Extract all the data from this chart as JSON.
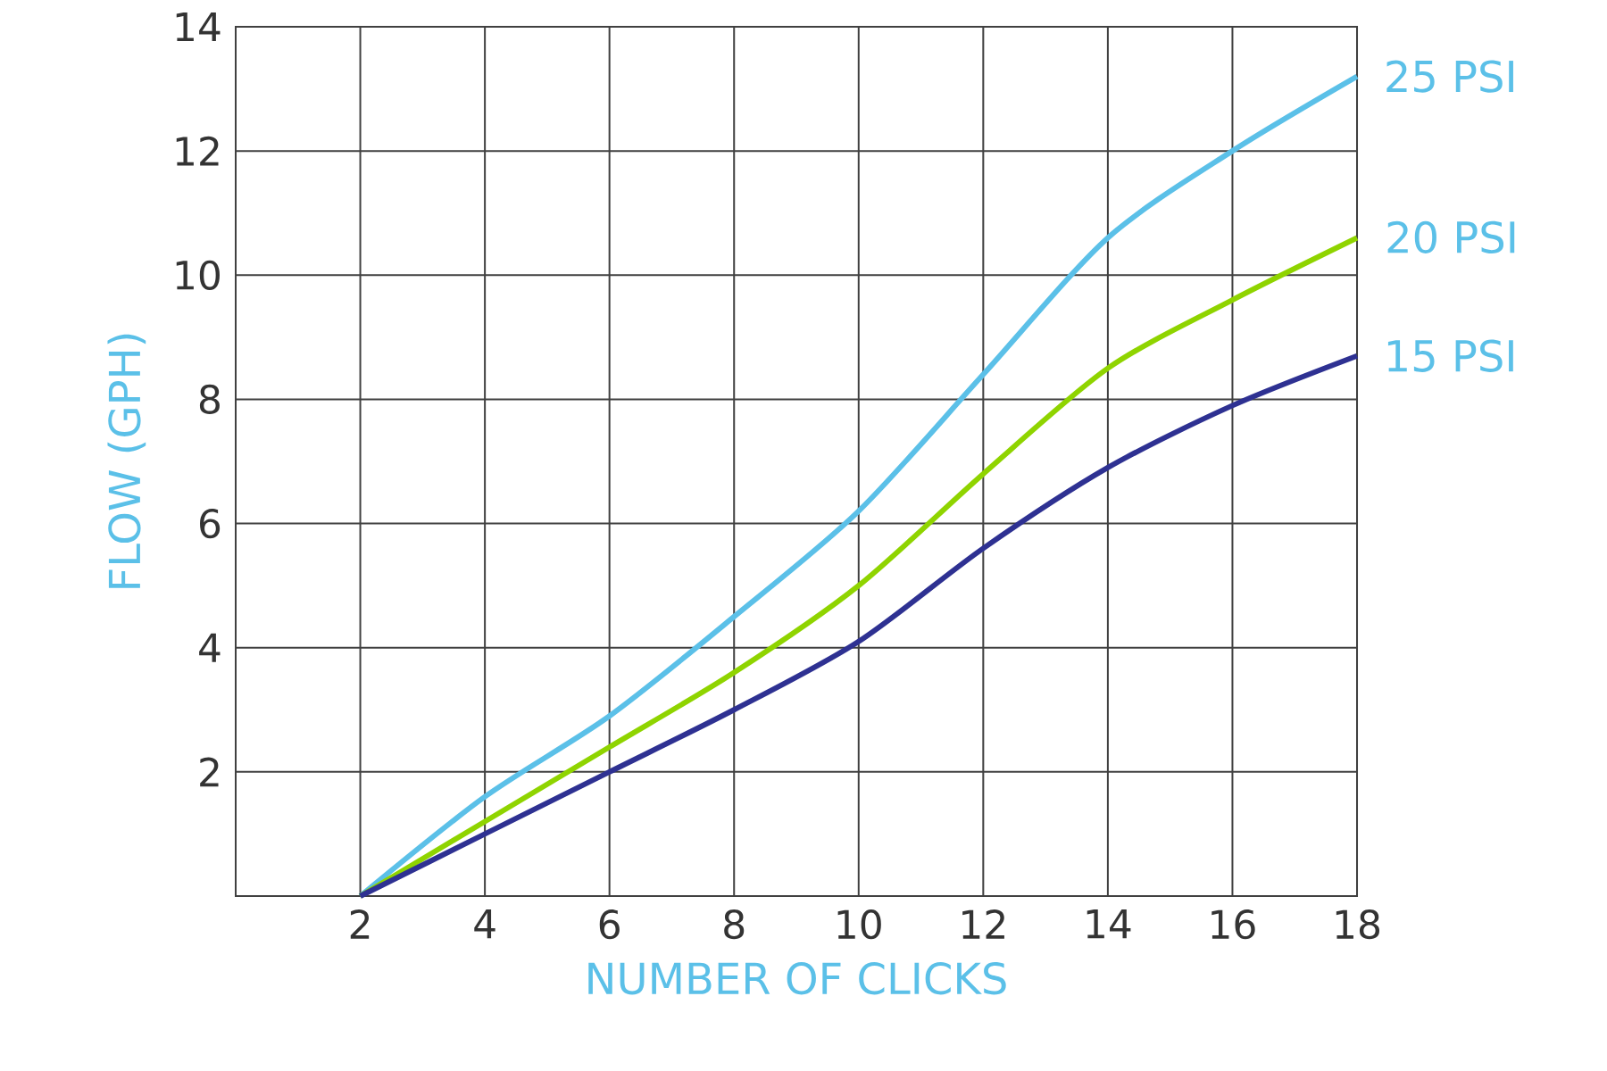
{
  "chart_data": {
    "type": "line",
    "xlabel": "NUMBER OF CLICKS",
    "ylabel": "FLOW (GPH)",
    "x": [
      2,
      4,
      6,
      8,
      10,
      12,
      14,
      16,
      18
    ],
    "series": [
      {
        "name": "25 PSI",
        "color": "#5bc0e8",
        "values": [
          0,
          1.6,
          2.9,
          4.5,
          6.2,
          8.4,
          10.6,
          12,
          13.2
        ]
      },
      {
        "name": "20 PSI",
        "color": "#8fd400",
        "values": [
          0,
          1.2,
          2.4,
          3.6,
          5.0,
          6.8,
          8.5,
          9.6,
          10.6
        ]
      },
      {
        "name": "15 PSI",
        "color": "#2e3192",
        "values": [
          0,
          1.0,
          2.0,
          3.0,
          4.1,
          5.6,
          6.9,
          7.9,
          8.7
        ]
      }
    ],
    "xlim": [
      0,
      18
    ],
    "ylim": [
      0,
      14
    ],
    "xticks": [
      2,
      4,
      6,
      8,
      10,
      12,
      14,
      16,
      18
    ],
    "yticks": [
      2,
      4,
      6,
      8,
      10,
      12,
      14
    ],
    "grid": true,
    "legend": false,
    "marker": "none",
    "line_style": "solid"
  }
}
